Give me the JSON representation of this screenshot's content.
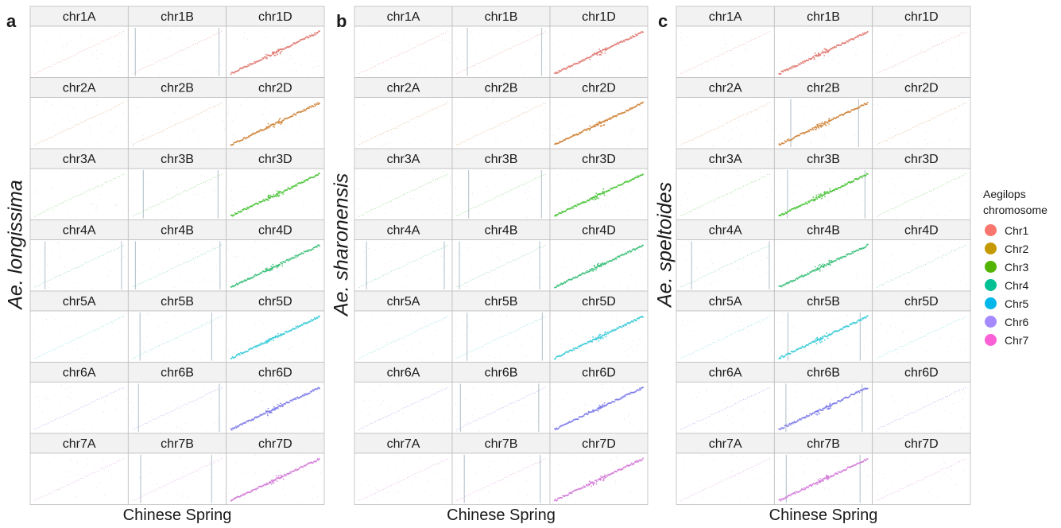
{
  "chart_data": {
    "type": "scatter",
    "description_of_layout": "three faceted dot-plot panels, 7 rows x 3 columns of subgenome chromosomes",
    "panels": [
      {
        "letter": "a",
        "species": "Ae. longissima",
        "xlabel": "Chinese Spring",
        "strong_subgenome": "D",
        "extra_diag_on": {
          "chr1B": true,
          "chr3B": true,
          "chr4A": true,
          "chr4B": true,
          "chr5B": true,
          "chr6B": true,
          "chr7B": true
        }
      },
      {
        "letter": "b",
        "species": "Ae. sharonensis",
        "xlabel": "Chinese Spring",
        "strong_subgenome": "D",
        "extra_diag_on": {
          "chr1B": true,
          "chr3B": true,
          "chr4A": true,
          "chr4B": true,
          "chr5B": true,
          "chr6B": true,
          "chr7B": true
        }
      },
      {
        "letter": "c",
        "species": "Ae. speltoides",
        "xlabel": "Chinese Spring",
        "strong_subgenome": "B",
        "extra_diag_on": {
          "chr2B": true,
          "chr3B": true,
          "chr4A": true,
          "chr5B": true,
          "chr6B": true,
          "chr7B": true
        }
      }
    ],
    "facet_rows": [
      [
        "chr1A",
        "chr1B",
        "chr1D"
      ],
      [
        "chr2A",
        "chr2B",
        "chr2D"
      ],
      [
        "chr3A",
        "chr3B",
        "chr3D"
      ],
      [
        "chr4A",
        "chr4B",
        "chr4D"
      ],
      [
        "chr5A",
        "chr5B",
        "chr5D"
      ],
      [
        "chr6A",
        "chr6B",
        "chr6D"
      ],
      [
        "chr7A",
        "chr7B",
        "chr7D"
      ]
    ],
    "legend": {
      "title_line1": "Aegilops",
      "title_line2": "chromosome",
      "position": "right",
      "items": [
        {
          "label": "Chr1",
          "color": "#F8766D"
        },
        {
          "label": "Chr2",
          "color": "#C49A00"
        },
        {
          "label": "Chr3",
          "color": "#53B400"
        },
        {
          "label": "Chr4",
          "color": "#00C094"
        },
        {
          "label": "Chr5",
          "color": "#00B6EB"
        },
        {
          "label": "Chr6",
          "color": "#A58AFF"
        },
        {
          "label": "Chr7",
          "color": "#FB61D7"
        }
      ]
    },
    "row_colors": [
      "#E07A72",
      "#D0853A",
      "#4CC43A",
      "#3CC07A",
      "#3ACBD8",
      "#7D7BE8",
      "#D47CD8"
    ],
    "strip_fill": "#F2F2F2",
    "panel_border": "#BDBDBD",
    "grid": false
  }
}
